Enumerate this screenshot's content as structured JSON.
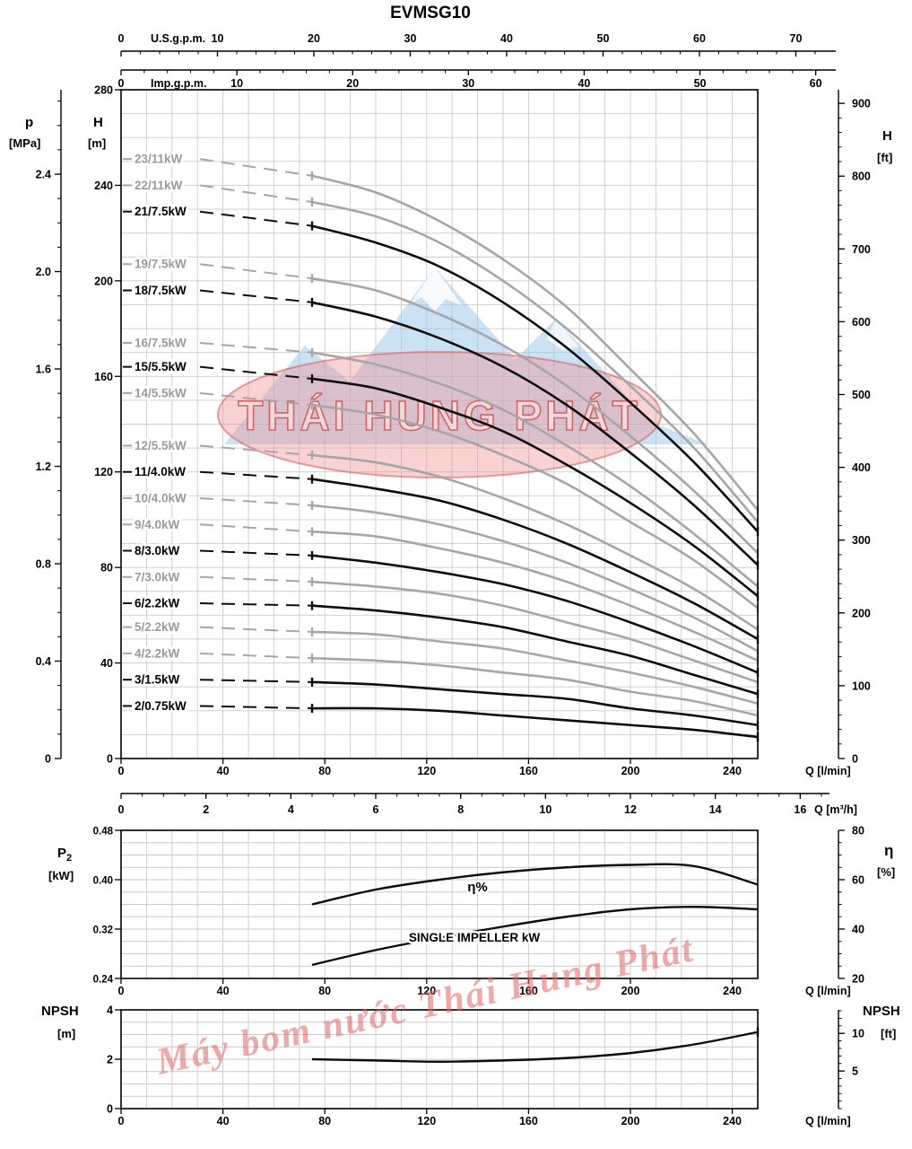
{
  "title": "EVMSG10",
  "watermark": {
    "brand": "THÁI HUNG PHÁT",
    "diagonal_text": "Máy bom nước Thái Hung Phát"
  },
  "chart_data": [
    {
      "id": "head_capacity",
      "type": "line",
      "title": "EVMSG10",
      "xlabel": "Q [l/min]",
      "ylabel": "H [m]",
      "xlim": [
        0,
        250
      ],
      "ylim": [
        0,
        280
      ],
      "grid": "on",
      "x_ticks": [
        0,
        40,
        80,
        120,
        160,
        200,
        240
      ],
      "y_ticks": [
        0,
        40,
        80,
        120,
        160,
        200,
        240,
        280
      ],
      "y_axis_left_label": "H",
      "y_axis_left_unit": "[m]",
      "x": [
        0,
        40,
        75,
        100,
        125,
        150,
        175,
        200,
        225,
        250
      ],
      "solid_from": 75,
      "series": [
        {
          "name": "23/11kW",
          "color": "gray",
          "values": [
            251,
            248,
            244,
            237,
            225,
            209,
            189,
            163,
            136,
            104
          ]
        },
        {
          "name": "22/11kW",
          "color": "gray",
          "values": [
            240,
            238,
            233,
            227,
            216,
            200,
            180,
            156,
            130,
            99
          ]
        },
        {
          "name": "21/7.5kW",
          "color": "black",
          "values": [
            229,
            227,
            223,
            216,
            206,
            191,
            172,
            149,
            124,
            95
          ]
        },
        {
          "name": "19/7.5kW",
          "color": "gray",
          "values": [
            207,
            205,
            201,
            196,
            186,
            173,
            156,
            135,
            112,
            86
          ]
        },
        {
          "name": "18/7.5kW",
          "color": "black",
          "values": [
            196,
            194,
            191,
            185,
            176,
            164,
            148,
            128,
            106,
            81
          ]
        },
        {
          "name": "16/7.5kW",
          "color": "gray",
          "values": [
            174,
            173,
            170,
            165,
            157,
            146,
            131,
            114,
            94,
            72
          ]
        },
        {
          "name": "15/5.5kW",
          "color": "black",
          "values": [
            164,
            162,
            159,
            155,
            147,
            137,
            123,
            107,
            89,
            68
          ]
        },
        {
          "name": "14/5.5kW",
          "color": "gray",
          "values": [
            153,
            151,
            148,
            144,
            137,
            127,
            115,
            99,
            83,
            63
          ]
        },
        {
          "name": "12/5.5kW",
          "color": "gray",
          "values": [
            131,
            130,
            127,
            124,
            118,
            109,
            98,
            85,
            71,
            54
          ]
        },
        {
          "name": "11/4.0kW",
          "color": "black",
          "values": [
            120,
            119,
            117,
            113,
            108,
            100,
            90,
            78,
            65,
            50
          ]
        },
        {
          "name": "10/4.0kW",
          "color": "gray",
          "values": [
            109,
            108,
            106,
            103,
            98,
            91,
            82,
            71,
            59,
            45
          ]
        },
        {
          "name": "9/4.0kW",
          "color": "gray",
          "values": [
            98,
            97,
            95,
            93,
            88,
            82,
            74,
            64,
            53,
            41
          ]
        },
        {
          "name": "8/3.0kW",
          "color": "black",
          "values": [
            87,
            86,
            85,
            82,
            78,
            73,
            66,
            57,
            47,
            36
          ]
        },
        {
          "name": "7/3.0kW",
          "color": "gray",
          "values": [
            76,
            76,
            74,
            72,
            69,
            64,
            57,
            50,
            41,
            32
          ]
        },
        {
          "name": "6/2.2kW",
          "color": "black",
          "values": [
            65,
            65,
            64,
            62,
            59,
            55,
            49,
            43,
            35,
            27
          ]
        },
        {
          "name": "5/2.2kW",
          "color": "gray",
          "values": [
            55,
            54,
            53,
            52,
            49,
            46,
            41,
            36,
            30,
            23
          ]
        },
        {
          "name": "4/2.2kW",
          "color": "gray",
          "values": [
            44,
            43,
            42,
            41,
            39,
            36,
            33,
            28,
            24,
            18
          ]
        },
        {
          "name": "3/1.5kW",
          "color": "black",
          "values": [
            33,
            32,
            32,
            31,
            29,
            27,
            25,
            21,
            18,
            14
          ]
        },
        {
          "name": "2/0.75kW",
          "color": "black",
          "values": [
            22,
            22,
            21,
            21,
            20,
            18,
            16,
            14,
            12,
            9
          ]
        }
      ],
      "secondary_axes": {
        "usgpm": {
          "label": "U.S.g.p.m.",
          "ticks": [
            0,
            10,
            20,
            30,
            40,
            50,
            60,
            70
          ],
          "lmin_per_unit": 3.785
        },
        "impgpm": {
          "label": "Imp.g.p.m.",
          "ticks": [
            0,
            10,
            20,
            30,
            40,
            50,
            60
          ],
          "lmin_per_unit": 4.546
        },
        "p_mpa": {
          "label": "p",
          "unit": "[MPa]",
          "ticks": [
            0,
            0.4,
            0.8,
            1.2,
            1.6,
            2.0,
            2.4
          ],
          "tick_labels": [
            "0",
            "0.4",
            "0.8",
            "1.2",
            "1.6",
            "2.0",
            "2.4"
          ],
          "m_per_unit": 101.94
        },
        "h_ft": {
          "label": "H",
          "unit": "[ft]",
          "ticks": [
            0,
            100,
            200,
            300,
            400,
            500,
            600,
            700,
            800,
            900
          ],
          "m_per_unit": 0.3048
        },
        "q_m3h": {
          "label": "Q [m³/h]",
          "ticks": [
            0,
            2,
            4,
            6,
            8,
            10,
            12,
            14,
            16
          ],
          "lmin_per_unit": 16.6667
        }
      }
    },
    {
      "id": "power_efficiency",
      "type": "line",
      "xlabel": "Q [l/min]",
      "xlim": [
        0,
        250
      ],
      "x_ticks": [
        0,
        40,
        80,
        120,
        160,
        200,
        240
      ],
      "left_axis": {
        "label_main": "P",
        "label_sub": "2",
        "unit": "[kW]",
        "range": [
          0.24,
          0.48
        ],
        "ticks": [
          0.24,
          0.32,
          0.4,
          0.48
        ],
        "tick_labels": [
          "0.24",
          "0.32",
          "0.40",
          "0.48"
        ]
      },
      "right_axis": {
        "label": "η",
        "unit": "[%]",
        "range": [
          20,
          80
        ],
        "ticks": [
          20,
          40,
          60,
          80
        ]
      },
      "series": [
        {
          "name": "η%",
          "axis": "right",
          "x": [
            75,
            100,
            125,
            150,
            175,
            200,
            225,
            250
          ],
          "values": [
            50,
            56,
            60,
            63,
            65,
            66,
            65.5,
            58
          ]
        },
        {
          "name": "SINGLE IMPELLER kW",
          "axis": "left",
          "x": [
            75,
            100,
            125,
            150,
            175,
            200,
            225,
            250
          ],
          "values": [
            0.262,
            0.286,
            0.306,
            0.324,
            0.34,
            0.352,
            0.356,
            0.352
          ]
        }
      ]
    },
    {
      "id": "npsh",
      "type": "line",
      "xlabel": "Q [l/min]",
      "xlim": [
        0,
        250
      ],
      "x_ticks": [
        0,
        40,
        80,
        120,
        160,
        200,
        240
      ],
      "left_axis": {
        "label": "NPSH",
        "unit": "[m]",
        "range": [
          0,
          4
        ],
        "ticks": [
          0,
          2,
          4
        ]
      },
      "right_axis": {
        "label": "NPSH",
        "unit": "[ft]",
        "ticks": [
          5,
          10
        ],
        "ft_per_m": 3.2808
      },
      "series": [
        {
          "name": "NPSH",
          "x": [
            75,
            100,
            125,
            150,
            175,
            200,
            225,
            250
          ],
          "values": [
            2.0,
            1.95,
            1.9,
            1.95,
            2.05,
            2.25,
            2.6,
            3.1
          ]
        }
      ]
    }
  ]
}
